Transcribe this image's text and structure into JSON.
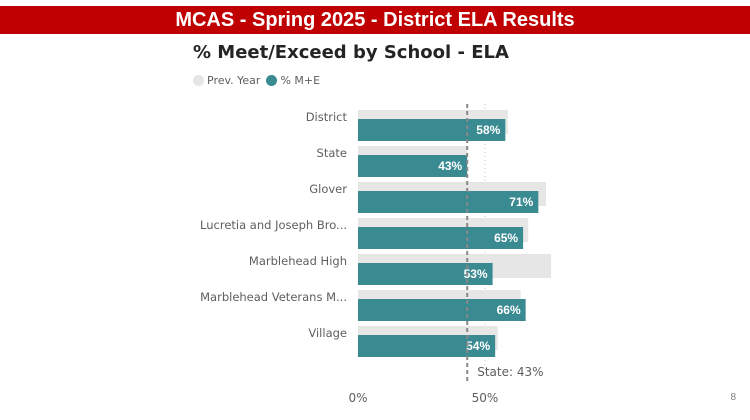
{
  "banner": {
    "title": "MCAS - Spring 2025 - District ELA Results"
  },
  "page": {
    "number": "8"
  },
  "chart_data": {
    "type": "bar",
    "orientation": "horizontal",
    "title": "% Meet/Exceed by School - ELA",
    "categories": [
      "District",
      "State",
      "Glover",
      "Lucretia and Joseph Bro...",
      "Marblehead High",
      "Marblehead Veterans M...",
      "Village"
    ],
    "series": [
      {
        "name": "Prev. Year",
        "color": "#e6e6e6",
        "values": [
          59,
          43,
          74,
          67,
          76,
          64,
          55
        ]
      },
      {
        "name": "% M+E",
        "color": "#3a8a92",
        "values": [
          58,
          43,
          71,
          65,
          53,
          66,
          54
        ],
        "labels": [
          "58%",
          "43%",
          "71%",
          "65%",
          "53%",
          "66%",
          "54%"
        ]
      }
    ],
    "xlim": [
      0,
      100
    ],
    "xticks": [
      {
        "value": 0,
        "label": "0%"
      },
      {
        "value": 50,
        "label": "50%"
      }
    ],
    "reference_line": {
      "value": 43,
      "label": "State: 43%"
    },
    "legend_position": "top-left",
    "grid": false
  }
}
